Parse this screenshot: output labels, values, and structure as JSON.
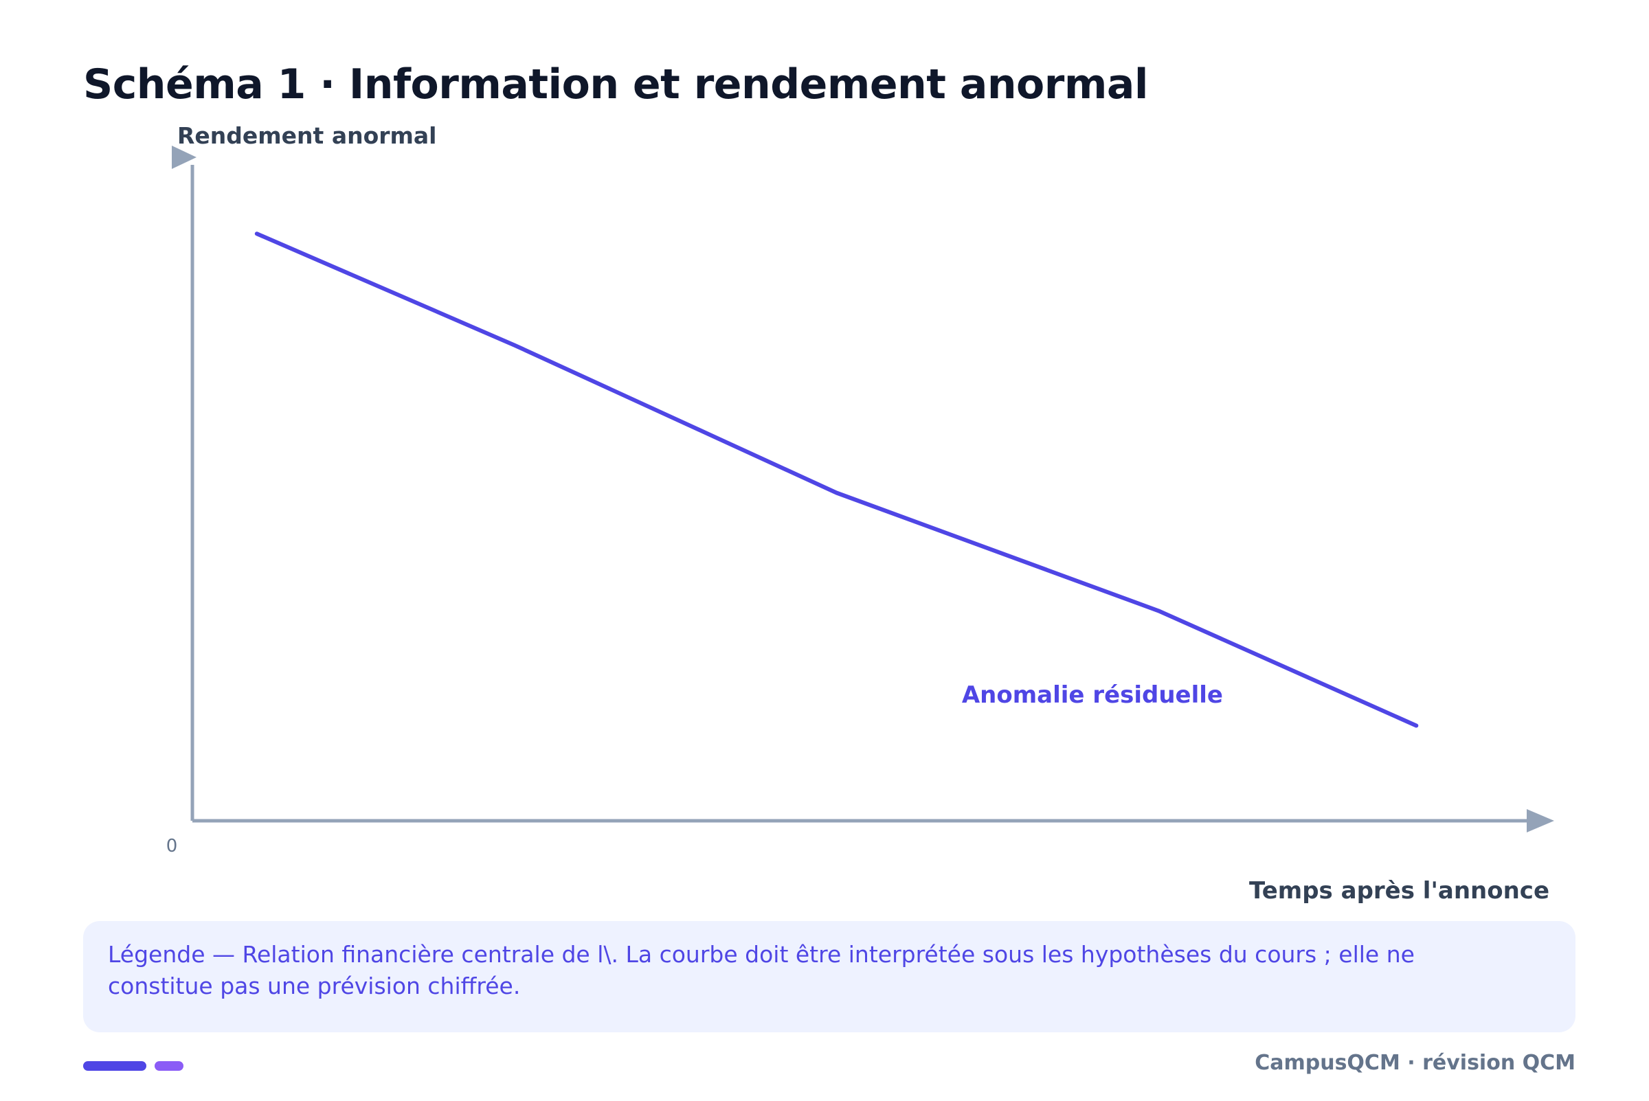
{
  "title": "Schéma 1 · Information et rendement anormal",
  "chart_data": {
    "type": "line",
    "title": "Schéma 1 · Information et rendement anormal",
    "xlabel": "Temps après l'annonce",
    "ylabel": "Rendement anormal",
    "x_ticks": [],
    "y_ticks": [
      "0"
    ],
    "xlim": [
      0,
      100
    ],
    "ylim": [
      0,
      100
    ],
    "grid": false,
    "series": [
      {
        "x": [
          5,
          25,
          50,
          75,
          95
        ],
        "y": [
          89.5,
          72.5,
          50,
          32,
          14.5
        ],
        "color": "#4f46e5"
      }
    ],
    "annotations": [
      {
        "text": "Anomalie résiduelle",
        "x": 80,
        "y": 18,
        "color": "#4f46e5"
      }
    ]
  },
  "legend_text": "Légende — Relation financière centrale de l\\. La courbe doit être interprétée sous les hypothèses du cours ; elle ne constitue pas une prévision chiffrée.",
  "footer": {
    "brand": "CampusQCM · révision QCM"
  },
  "colors": {
    "accent": "#4f46e5",
    "accent_secondary": "#8b5cf6",
    "axis": "#94a3b8",
    "title": "#0f172a",
    "legend_bg": "#eef2ff",
    "muted": "#64748b"
  }
}
